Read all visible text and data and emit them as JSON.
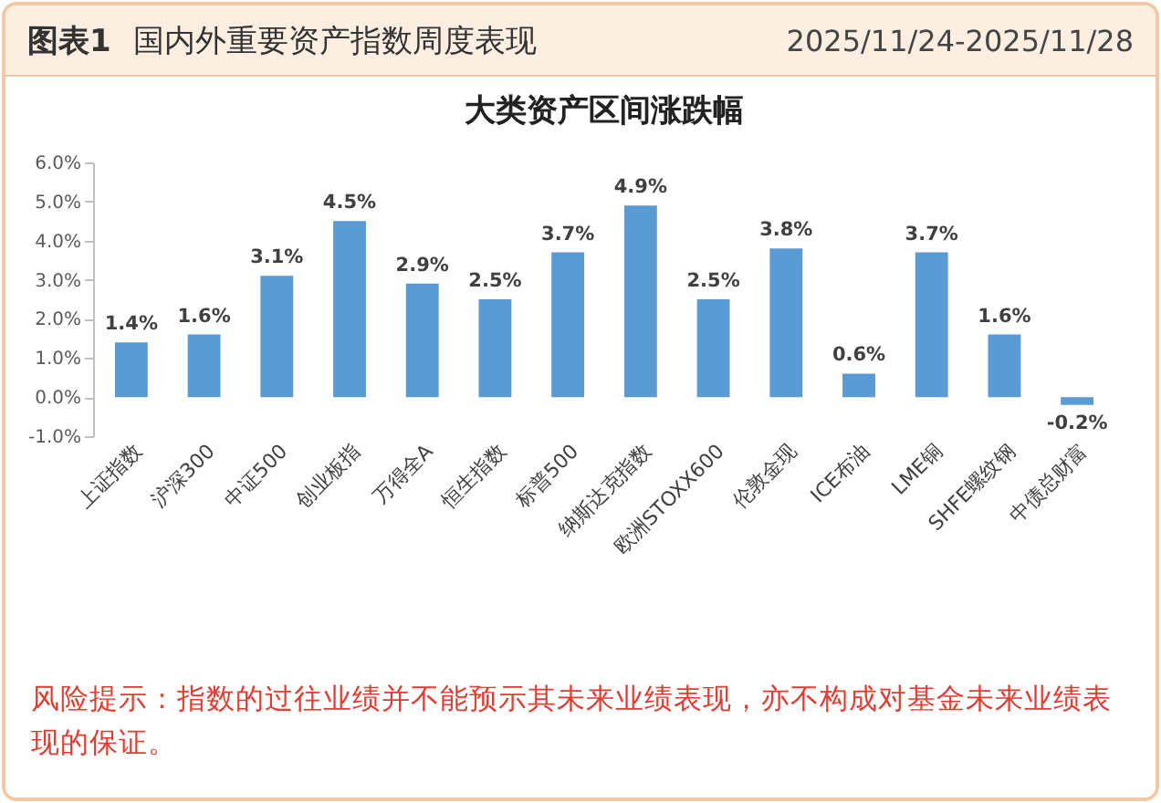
{
  "chart_data": {
    "type": "bar",
    "title": "大类资产区间涨跌幅",
    "annotations": [
      "图表1",
      "国内外重要资产指数周度表现",
      "2025/11/24-2025/11/28",
      "风险提示：指数的过往业绩并不能预示其未来业绩表现，亦不构成对基金未来业绩表现的保证。"
    ],
    "categories": [
      "上证指数",
      "沪深300",
      "中证500",
      "创业板指",
      "万得全A",
      "恒生指数",
      "标普500",
      "纳斯达克指数",
      "欧洲STOXX600",
      "伦敦金现",
      "ICE布油",
      "LME铜",
      "SHFE螺纹钢",
      "中债总财富"
    ],
    "values": [
      1.4,
      1.6,
      3.1,
      4.5,
      2.9,
      2.5,
      3.7,
      4.9,
      2.5,
      3.8,
      0.6,
      3.7,
      1.6,
      -0.2
    ],
    "value_labels": [
      "1.4%",
      "1.6%",
      "3.1%",
      "4.5%",
      "2.9%",
      "2.5%",
      "3.7%",
      "4.9%",
      "2.5%",
      "3.8%",
      "0.6%",
      "3.7%",
      "1.6%",
      "-0.2%"
    ],
    "color": "#5b9bd5",
    "ylim": [
      -1,
      6
    ],
    "yticks": [
      {
        "value": -1,
        "label": "-1.0%"
      },
      {
        "value": 0,
        "label": "0.0%"
      },
      {
        "value": 1,
        "label": "1.0%"
      },
      {
        "value": 2,
        "label": "2.0%"
      },
      {
        "value": 3,
        "label": "3.0%"
      },
      {
        "value": 4,
        "label": "4.0%"
      },
      {
        "value": 5,
        "label": "5.0%"
      },
      {
        "value": 6,
        "label": "6.0%"
      }
    ],
    "grid": false
  }
}
